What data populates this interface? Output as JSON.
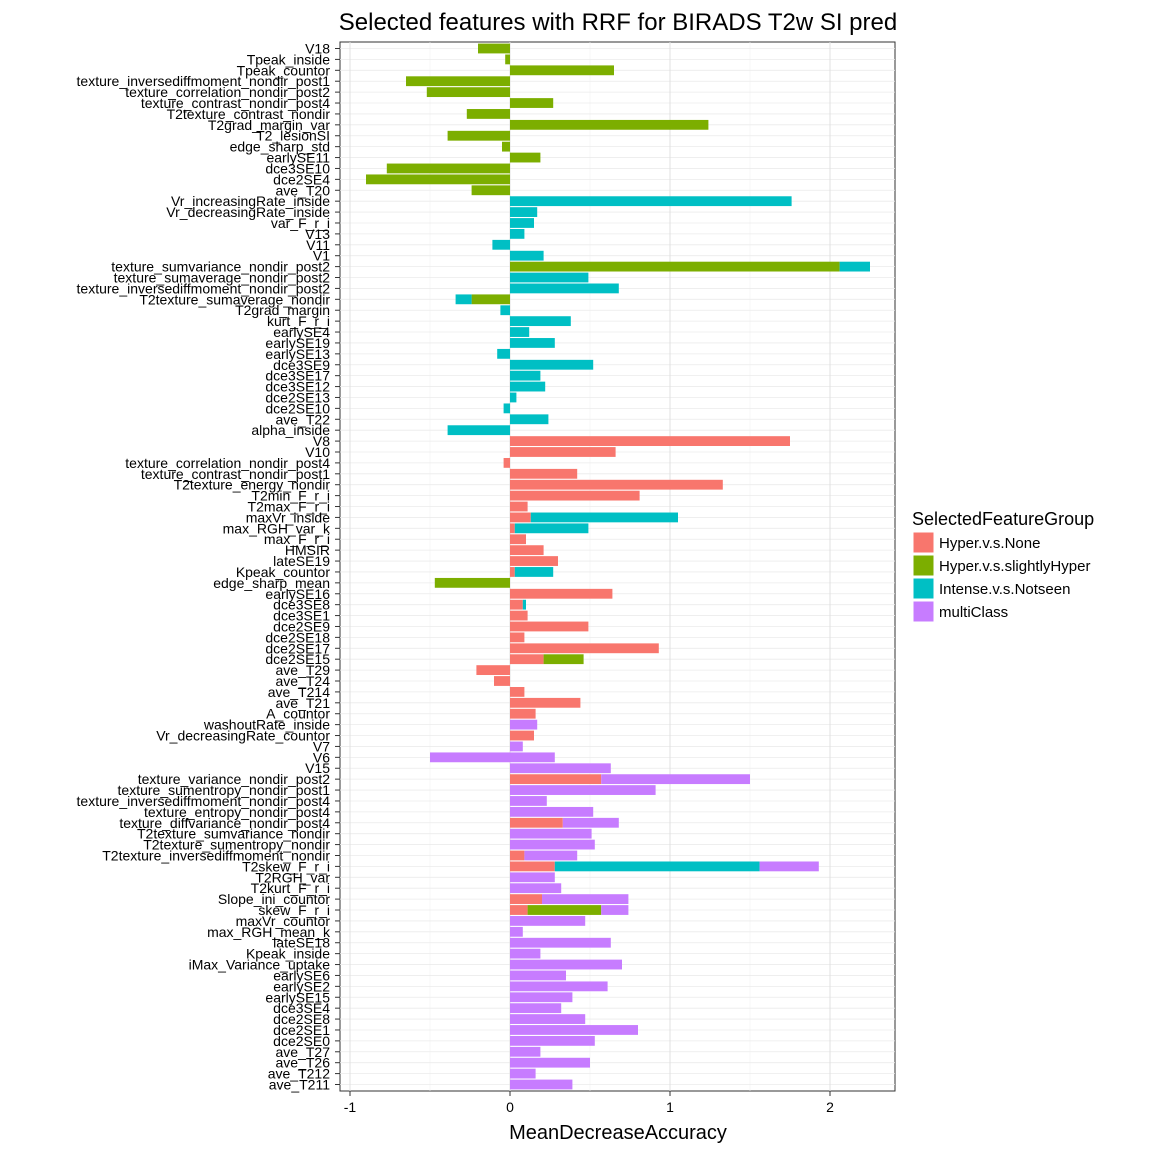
{
  "chart_data": {
    "type": "bar",
    "orientation": "horizontal",
    "stacked": true,
    "title": "Selected features with RRF for BIRADS T2w SI pred",
    "xlabel": "MeanDecreaseAccuracy",
    "ylabel": "",
    "xlim": [
      -1.02,
      2.4
    ],
    "xticks": [
      -1,
      0,
      1,
      2
    ],
    "grid": true,
    "legend": {
      "title": "SelectedFeatureGroup",
      "position": "right",
      "entries": [
        {
          "name": "Hyper.v.s.None",
          "color": "#F8766D"
        },
        {
          "name": "Hyper.v.s.slightlyHyper",
          "color": "#7CAE00"
        },
        {
          "name": "Intense.v.s.Notseen",
          "color": "#00BFC4"
        },
        {
          "name": "multiClass",
          "color": "#C77CFF"
        }
      ]
    },
    "bars": [
      {
        "label": "V18",
        "segments": [
          {
            "group": 1,
            "value": -0.2
          }
        ]
      },
      {
        "label": "Tpeak_inside",
        "segments": [
          {
            "group": 1,
            "value": -0.03
          }
        ]
      },
      {
        "label": "Tpeak_countor",
        "segments": [
          {
            "group": 1,
            "value": 0.65
          }
        ]
      },
      {
        "label": "texture_inversediffmoment_nondir_post1",
        "segments": [
          {
            "group": 1,
            "value": -0.65
          }
        ]
      },
      {
        "label": "texture_correlation_nondir_post2",
        "segments": [
          {
            "group": 1,
            "value": -0.52
          }
        ]
      },
      {
        "label": "texture_contrast_nondir_post4",
        "segments": [
          {
            "group": 1,
            "value": 0.27
          }
        ]
      },
      {
        "label": "T2texture_contrast_nondir",
        "segments": [
          {
            "group": 1,
            "value": -0.27
          }
        ]
      },
      {
        "label": "T2grad_margin_var",
        "segments": [
          {
            "group": 1,
            "value": 1.24
          }
        ]
      },
      {
        "label": "T2_lesionSI",
        "segments": [
          {
            "group": 1,
            "value": -0.39
          }
        ]
      },
      {
        "label": "edge_sharp_std",
        "segments": [
          {
            "group": 1,
            "value": -0.05
          }
        ]
      },
      {
        "label": "earlySE11",
        "segments": [
          {
            "group": 1,
            "value": 0.19
          }
        ]
      },
      {
        "label": "dce3SE10",
        "segments": [
          {
            "group": 1,
            "value": -0.77
          }
        ]
      },
      {
        "label": "dce2SE4",
        "segments": [
          {
            "group": 1,
            "value": -0.9
          }
        ]
      },
      {
        "label": "ave_T20",
        "segments": [
          {
            "group": 1,
            "value": -0.24
          }
        ]
      },
      {
        "label": "Vr_increasingRate_inside",
        "segments": [
          {
            "group": 2,
            "value": 1.76
          }
        ]
      },
      {
        "label": "Vr_decreasingRate_inside",
        "segments": [
          {
            "group": 2,
            "value": 0.17
          }
        ]
      },
      {
        "label": "var_F_r_i",
        "segments": [
          {
            "group": 2,
            "value": 0.15
          }
        ]
      },
      {
        "label": "V13",
        "segments": [
          {
            "group": 2,
            "value": 0.09
          }
        ]
      },
      {
        "label": "V11",
        "segments": [
          {
            "group": 2,
            "value": -0.11
          }
        ]
      },
      {
        "label": "V1",
        "segments": [
          {
            "group": 2,
            "value": 0.21
          }
        ]
      },
      {
        "label": "texture_sumvariance_nondir_post2",
        "segments": [
          {
            "group": 1,
            "value": 2.06
          },
          {
            "group": 2,
            "value": 0.19
          }
        ]
      },
      {
        "label": "texture_sumaverage_nondir_post2",
        "segments": [
          {
            "group": 2,
            "value": 0.49
          }
        ]
      },
      {
        "label": "texture_inversediffmoment_nondir_post2",
        "segments": [
          {
            "group": 2,
            "value": 0.68
          }
        ]
      },
      {
        "label": "T2texture_sumaverage_nondir",
        "segments": [
          {
            "group": 1,
            "value": -0.24
          },
          {
            "group": 2,
            "value": -0.1
          }
        ]
      },
      {
        "label": "T2grad_margin",
        "segments": [
          {
            "group": 2,
            "value": -0.06
          }
        ]
      },
      {
        "label": "kurt_F_r_i",
        "segments": [
          {
            "group": 2,
            "value": 0.38
          }
        ]
      },
      {
        "label": "earlySE4",
        "segments": [
          {
            "group": 2,
            "value": 0.12
          }
        ]
      },
      {
        "label": "earlySE19",
        "segments": [
          {
            "group": 2,
            "value": 0.28
          }
        ]
      },
      {
        "label": "earlySE13",
        "segments": [
          {
            "group": 2,
            "value": -0.08
          }
        ]
      },
      {
        "label": "dce3SE9",
        "segments": [
          {
            "group": 2,
            "value": 0.52
          }
        ]
      },
      {
        "label": "dce3SE17",
        "segments": [
          {
            "group": 2,
            "value": 0.19
          }
        ]
      },
      {
        "label": "dce3SE12",
        "segments": [
          {
            "group": 2,
            "value": 0.22
          }
        ]
      },
      {
        "label": "dce2SE13",
        "segments": [
          {
            "group": 2,
            "value": 0.04
          }
        ]
      },
      {
        "label": "dce2SE10",
        "segments": [
          {
            "group": 2,
            "value": -0.04
          }
        ]
      },
      {
        "label": "ave_T22",
        "segments": [
          {
            "group": 2,
            "value": 0.24
          }
        ]
      },
      {
        "label": "alpha_inside",
        "segments": [
          {
            "group": 2,
            "value": -0.39
          }
        ]
      },
      {
        "label": "V8",
        "segments": [
          {
            "group": 0,
            "value": 1.75
          }
        ]
      },
      {
        "label": "V10",
        "segments": [
          {
            "group": 0,
            "value": 0.66
          }
        ]
      },
      {
        "label": "texture_correlation_nondir_post4",
        "segments": [
          {
            "group": 0,
            "value": -0.04
          }
        ]
      },
      {
        "label": "texture_contrast_nondir_post1",
        "segments": [
          {
            "group": 0,
            "value": 0.42
          }
        ]
      },
      {
        "label": "T2texture_energy_nondir",
        "segments": [
          {
            "group": 0,
            "value": 1.33
          }
        ]
      },
      {
        "label": "T2min_F_r_i",
        "segments": [
          {
            "group": 0,
            "value": 0.81
          }
        ]
      },
      {
        "label": "T2max_F_r_i",
        "segments": [
          {
            "group": 0,
            "value": 0.11
          }
        ]
      },
      {
        "label": "maxVr_inside",
        "segments": [
          {
            "group": 0,
            "value": 0.13
          },
          {
            "group": 2,
            "value": 0.92
          }
        ]
      },
      {
        "label": "max_RGH_var_k",
        "segments": [
          {
            "group": 0,
            "value": 0.03
          },
          {
            "group": 2,
            "value": 0.46
          }
        ]
      },
      {
        "label": "max_F_r_i",
        "segments": [
          {
            "group": 0,
            "value": 0.1
          }
        ]
      },
      {
        "label": "HMSIR",
        "segments": [
          {
            "group": 0,
            "value": 0.21
          }
        ]
      },
      {
        "label": "lateSE19",
        "segments": [
          {
            "group": 0,
            "value": 0.3
          }
        ]
      },
      {
        "label": "Kpeak_countor",
        "segments": [
          {
            "group": 0,
            "value": 0.03
          },
          {
            "group": 2,
            "value": 0.24
          }
        ]
      },
      {
        "label": "edge_sharp_mean",
        "segments": [
          {
            "group": 1,
            "value": -0.47
          }
        ]
      },
      {
        "label": "earlySE16",
        "segments": [
          {
            "group": 0,
            "value": 0.64
          }
        ]
      },
      {
        "label": "dce3SE8",
        "segments": [
          {
            "group": 0,
            "value": 0.08
          },
          {
            "group": 2,
            "value": 0.02
          }
        ]
      },
      {
        "label": "dce3SE1",
        "segments": [
          {
            "group": 0,
            "value": 0.11
          }
        ]
      },
      {
        "label": "dce2SE9",
        "segments": [
          {
            "group": 0,
            "value": 0.49
          }
        ]
      },
      {
        "label": "dce2SE18",
        "segments": [
          {
            "group": 0,
            "value": 0.09
          }
        ]
      },
      {
        "label": "dce2SE17",
        "segments": [
          {
            "group": 0,
            "value": 0.93
          }
        ]
      },
      {
        "label": "dce2SE15",
        "segments": [
          {
            "group": 0,
            "value": 0.21
          },
          {
            "group": 1,
            "value": 0.25
          }
        ]
      },
      {
        "label": "ave_T29",
        "segments": [
          {
            "group": 0,
            "value": -0.21
          }
        ]
      },
      {
        "label": "ave_T24",
        "segments": [
          {
            "group": 0,
            "value": -0.1
          }
        ]
      },
      {
        "label": "ave_T214",
        "segments": [
          {
            "group": 0,
            "value": 0.09
          }
        ]
      },
      {
        "label": "ave_T21",
        "segments": [
          {
            "group": 0,
            "value": 0.44
          }
        ]
      },
      {
        "label": "A_countor",
        "segments": [
          {
            "group": 0,
            "value": 0.16
          }
        ]
      },
      {
        "label": "washoutRate_inside",
        "segments": [
          {
            "group": 3,
            "value": 0.17
          }
        ]
      },
      {
        "label": "Vr_decreasingRate_countor",
        "segments": [
          {
            "group": 0,
            "value": 0.15
          }
        ]
      },
      {
        "label": "V7",
        "segments": [
          {
            "group": 3,
            "value": 0.08
          }
        ]
      },
      {
        "label": "V6",
        "segments": [
          {
            "group": 3,
            "value": -0.5
          },
          {
            "group": 3,
            "value": 0.28
          }
        ]
      },
      {
        "label": "V15",
        "segments": [
          {
            "group": 3,
            "value": 0.63
          }
        ]
      },
      {
        "label": "texture_variance_nondir_post2",
        "segments": [
          {
            "group": 0,
            "value": 0.57
          },
          {
            "group": 3,
            "value": 0.93
          }
        ]
      },
      {
        "label": "texture_sumentropy_nondir_post1",
        "segments": [
          {
            "group": 3,
            "value": 0.91
          }
        ]
      },
      {
        "label": "texture_inversediffmoment_nondir_post4",
        "segments": [
          {
            "group": 3,
            "value": 0.23
          }
        ]
      },
      {
        "label": "texture_entropy_nondir_post4",
        "segments": [
          {
            "group": 3,
            "value": 0.52
          }
        ]
      },
      {
        "label": "texture_diffvariance_nondir_post4",
        "segments": [
          {
            "group": 0,
            "value": 0.33
          },
          {
            "group": 3,
            "value": 0.35
          }
        ]
      },
      {
        "label": "T2texture_sumvariance_nondir",
        "segments": [
          {
            "group": 3,
            "value": 0.51
          }
        ]
      },
      {
        "label": "T2texture_sumentropy_nondir",
        "segments": [
          {
            "group": 3,
            "value": 0.53
          }
        ]
      },
      {
        "label": "T2texture_inversediffmoment_nondir",
        "segments": [
          {
            "group": 0,
            "value": 0.09
          },
          {
            "group": 3,
            "value": 0.33
          }
        ]
      },
      {
        "label": "T2skew_F_r_i",
        "segments": [
          {
            "group": 0,
            "value": 0.28
          },
          {
            "group": 2,
            "value": 1.28
          },
          {
            "group": 3,
            "value": 0.37
          }
        ]
      },
      {
        "label": "T2RGH_var",
        "segments": [
          {
            "group": 3,
            "value": 0.28
          }
        ]
      },
      {
        "label": "T2kurt_F_r_i",
        "segments": [
          {
            "group": 3,
            "value": 0.32
          }
        ]
      },
      {
        "label": "Slope_ini_countor",
        "segments": [
          {
            "group": 0,
            "value": 0.2
          },
          {
            "group": 3,
            "value": 0.54
          }
        ]
      },
      {
        "label": "skew_F_r_i",
        "segments": [
          {
            "group": 0,
            "value": 0.11
          },
          {
            "group": 1,
            "value": 0.46
          },
          {
            "group": 3,
            "value": 0.17
          }
        ]
      },
      {
        "label": "maxVr_countor",
        "segments": [
          {
            "group": 3,
            "value": 0.47
          }
        ]
      },
      {
        "label": "max_RGH_mean_k",
        "segments": [
          {
            "group": 3,
            "value": 0.08
          }
        ]
      },
      {
        "label": "lateSE18",
        "segments": [
          {
            "group": 3,
            "value": 0.63
          }
        ]
      },
      {
        "label": "Kpeak_inside",
        "segments": [
          {
            "group": 3,
            "value": 0.19
          }
        ]
      },
      {
        "label": "iMax_Variance_uptake",
        "segments": [
          {
            "group": 3,
            "value": 0.7
          }
        ]
      },
      {
        "label": "earlySE6",
        "segments": [
          {
            "group": 3,
            "value": 0.35
          }
        ]
      },
      {
        "label": "earlySE2",
        "segments": [
          {
            "group": 3,
            "value": 0.61
          }
        ]
      },
      {
        "label": "earlySE15",
        "segments": [
          {
            "group": 3,
            "value": 0.39
          }
        ]
      },
      {
        "label": "dce3SE4",
        "segments": [
          {
            "group": 3,
            "value": 0.32
          }
        ]
      },
      {
        "label": "dce2SE8",
        "segments": [
          {
            "group": 3,
            "value": 0.47
          }
        ]
      },
      {
        "label": "dce2SE1",
        "segments": [
          {
            "group": 3,
            "value": 0.8
          }
        ]
      },
      {
        "label": "dce2SE0",
        "segments": [
          {
            "group": 3,
            "value": 0.53
          }
        ]
      },
      {
        "label": "ave_T27",
        "segments": [
          {
            "group": 3,
            "value": 0.19
          }
        ]
      },
      {
        "label": "ave_T26",
        "segments": [
          {
            "group": 3,
            "value": 0.5
          }
        ]
      },
      {
        "label": "ave_T212",
        "segments": [
          {
            "group": 3,
            "value": 0.16
          }
        ]
      },
      {
        "label": "ave_T211",
        "segments": [
          {
            "group": 3,
            "value": 0.39
          }
        ]
      }
    ]
  }
}
